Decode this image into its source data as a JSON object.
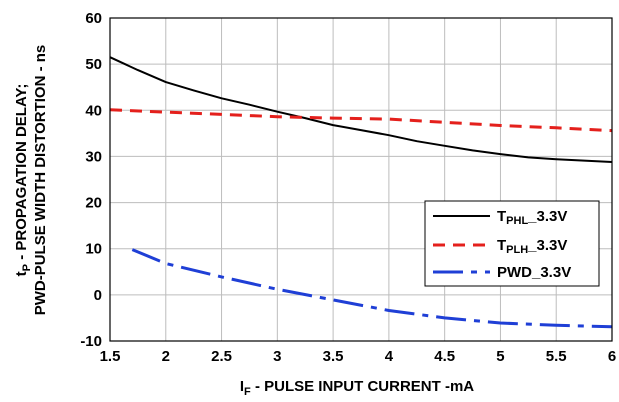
{
  "chart_data": {
    "type": "line",
    "x_ticks": [
      "1.5",
      "2",
      "2.5",
      "3",
      "3.5",
      "4",
      "4.5",
      "5",
      "5.5",
      "6"
    ],
    "y_ticks": [
      "-10",
      "0",
      "10",
      "20",
      "30",
      "40",
      "50",
      "60"
    ],
    "xlim": [
      1.5,
      6
    ],
    "ylim": [
      -10,
      60
    ],
    "grid": "x-and-y",
    "xlabel_main": "I",
    "xlabel_sub": "F",
    "xlabel_rest": " - PULSE INPUT CURRENT -mA",
    "ylabel_line1_main": "t",
    "ylabel_line1_sub": "P",
    "ylabel_line1_rest": " - PROPAGATION DELAY;",
    "ylabel_line2": "PWD-PULSE WIDTH DISTORTION - ns",
    "legend_position": "right-middle",
    "series": [
      {
        "name_main": "T",
        "name_sub": "PHL",
        "name_rest": "_3.3V",
        "color": "#000000",
        "dash": "solid",
        "x": [
          1.5,
          1.75,
          2,
          2.25,
          2.5,
          2.75,
          3,
          3.25,
          3.5,
          3.75,
          4,
          4.25,
          4.5,
          4.75,
          5,
          5.25,
          5.5,
          5.75,
          6
        ],
        "y": [
          51.5,
          48.7,
          46.1,
          44.3,
          42.6,
          41.2,
          39.7,
          38.3,
          36.8,
          35.7,
          34.6,
          33.3,
          32.3,
          31.3,
          30.5,
          29.8,
          29.4,
          29.1,
          28.8
        ]
      },
      {
        "name_main": "T",
        "name_sub": "PLH",
        "name_rest": "_3.3V",
        "color": "#e4201c",
        "dash": "dashed",
        "x": [
          1.5,
          2,
          2.5,
          3,
          3.5,
          4,
          4.5,
          5,
          5.5,
          6
        ],
        "y": [
          40.1,
          39.6,
          39.1,
          38.6,
          38.3,
          38.1,
          37.4,
          36.7,
          36.2,
          35.6
        ]
      },
      {
        "name_main": "PWD_3.3V",
        "name_sub": "",
        "name_rest": "",
        "color": "#1f3fd6",
        "dash": "dash-dot",
        "x": [
          1.7,
          2,
          2.5,
          3,
          3.5,
          4,
          4.5,
          5,
          5.5,
          6
        ],
        "y": [
          9.8,
          6.8,
          3.9,
          1.2,
          -1.1,
          -3.4,
          -5.0,
          -6.1,
          -6.6,
          -6.9
        ]
      }
    ]
  }
}
